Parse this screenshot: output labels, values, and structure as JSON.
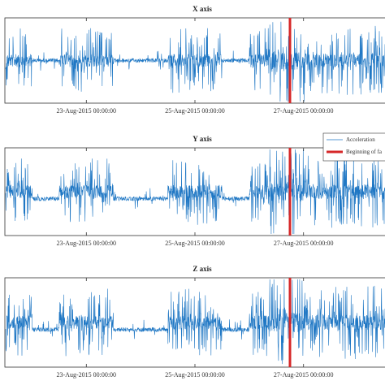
{
  "chart_data": [
    {
      "type": "line",
      "title": "X axis",
      "x_tick_labels": [
        "23-Aug-2015 00:00:00",
        "25-Aug-2015 00:00:00",
        "27-Aug-2015 00:00:00"
      ],
      "xlim": [
        "2015-08-21T12:00:00",
        "2015-08-28T12:00:00"
      ],
      "x_ticks": [
        "2015-08-23T00:00:00",
        "2015-08-25T00:00:00",
        "2015-08-27T00:00:00"
      ],
      "series": [
        {
          "name": "Acceleration",
          "color": "#1f77c4",
          "style": "dense noisy signal"
        },
        {
          "name": "Beginning of fault",
          "color": "#d62728",
          "x": "2015-08-26T18:00:00",
          "style": "vertical line"
        }
      ],
      "legend": "none",
      "grid": false
    },
    {
      "type": "line",
      "title": "Y axis",
      "x_tick_labels": [
        "23-Aug-2015 00:00:00",
        "25-Aug-2015 00:00:00",
        "27-Aug-2015 00:00:00"
      ],
      "xlim": [
        "2015-08-21T12:00:00",
        "2015-08-28T12:00:00"
      ],
      "x_ticks": [
        "2015-08-23T00:00:00",
        "2015-08-25T00:00:00",
        "2015-08-27T00:00:00"
      ],
      "series": [
        {
          "name": "Acceleration",
          "color": "#1f77c4",
          "style": "dense noisy signal"
        },
        {
          "name": "Beginning of fa",
          "color": "#d62728",
          "x": "2015-08-26T18:00:00",
          "style": "vertical line"
        }
      ],
      "legend": "top-right",
      "grid": false
    },
    {
      "type": "line",
      "title": "Z axis",
      "x_tick_labels": [
        "23-Aug-2015 00:00:00",
        "25-Aug-2015 00:00:00",
        "27-Aug-2015 00:00:00"
      ],
      "xlim": [
        "2015-08-21T12:00:00",
        "2015-08-28T12:00:00"
      ],
      "x_ticks": [
        "2015-08-23T00:00:00",
        "2015-08-25T00:00:00",
        "2015-08-27T00:00:00"
      ],
      "series": [
        {
          "name": "Acceleration",
          "color": "#1f77c4",
          "style": "dense noisy signal"
        },
        {
          "name": "Beginning of fault",
          "color": "#d62728",
          "x": "2015-08-26T18:00:00",
          "style": "vertical line"
        }
      ],
      "legend": "none",
      "grid": false
    }
  ],
  "legend": {
    "line_label": "Acceleration",
    "fault_label": "Beginning of fa"
  },
  "colors": {
    "signal": "#1f77c4",
    "fault": "#d62728",
    "axes": "#333333"
  }
}
